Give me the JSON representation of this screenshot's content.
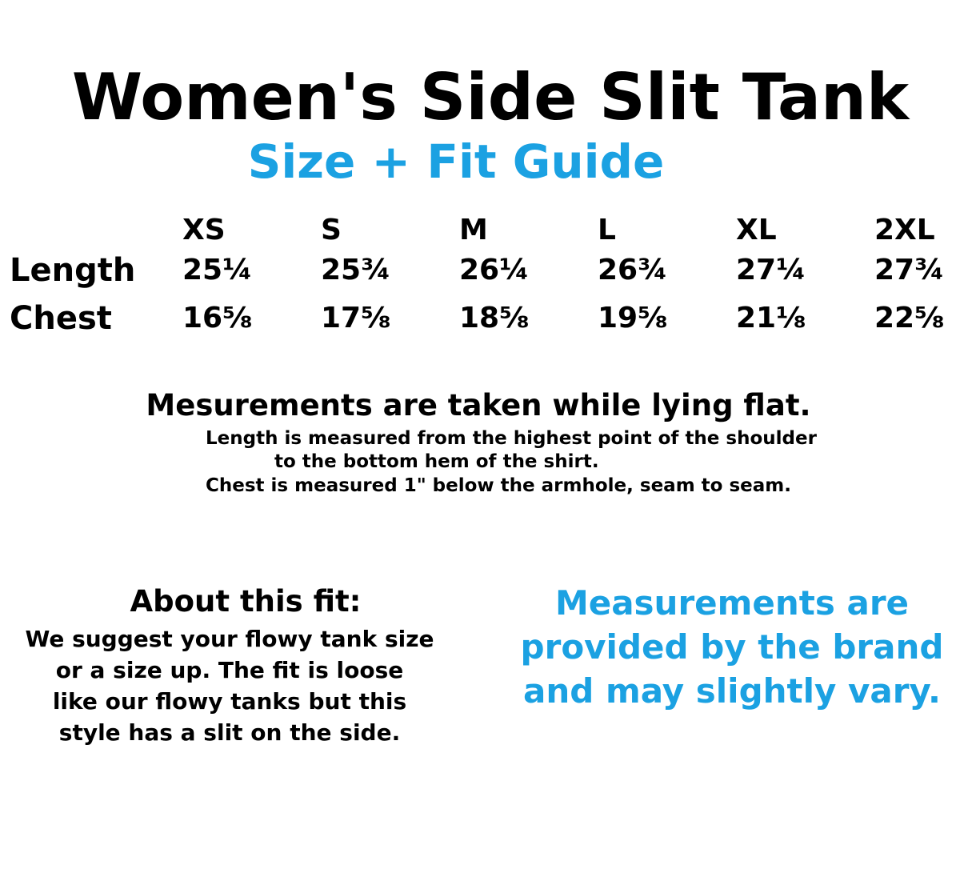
{
  "title": "Women's Side Slit Tank",
  "subtitle": "Size + Fit Guide",
  "accent_color": "#1ba1e2",
  "size_table": {
    "columns": [
      "XS",
      "S",
      "M",
      "L",
      "XL",
      "2XL"
    ],
    "rows": [
      {
        "label": "Length",
        "values": [
          "25¼",
          "25¾",
          "26¼",
          "26¾",
          "27¼",
          "27¾"
        ]
      },
      {
        "label": "Chest",
        "values": [
          "16⅝",
          "17⅝",
          "18⅝",
          "19⅝",
          "21⅛",
          "22⅝"
        ]
      }
    ]
  },
  "measurement_note": {
    "heading": "Mesurements are taken while lying flat.",
    "lines": [
      "Length is measured from the highest point of the shoulder",
      "to the bottom hem of the shirt.",
      "Chest is measured 1\" below the armhole, seam to seam."
    ]
  },
  "about_fit": {
    "heading": "About this fit:",
    "lines": [
      "We suggest your flowy tank size",
      "or a size up. The fit is loose",
      "like our flowy tanks but this",
      "style has a slit on the side."
    ]
  },
  "brand_note": {
    "lines": [
      "Measurements are",
      "provided by the brand",
      "and may slightly vary."
    ]
  }
}
